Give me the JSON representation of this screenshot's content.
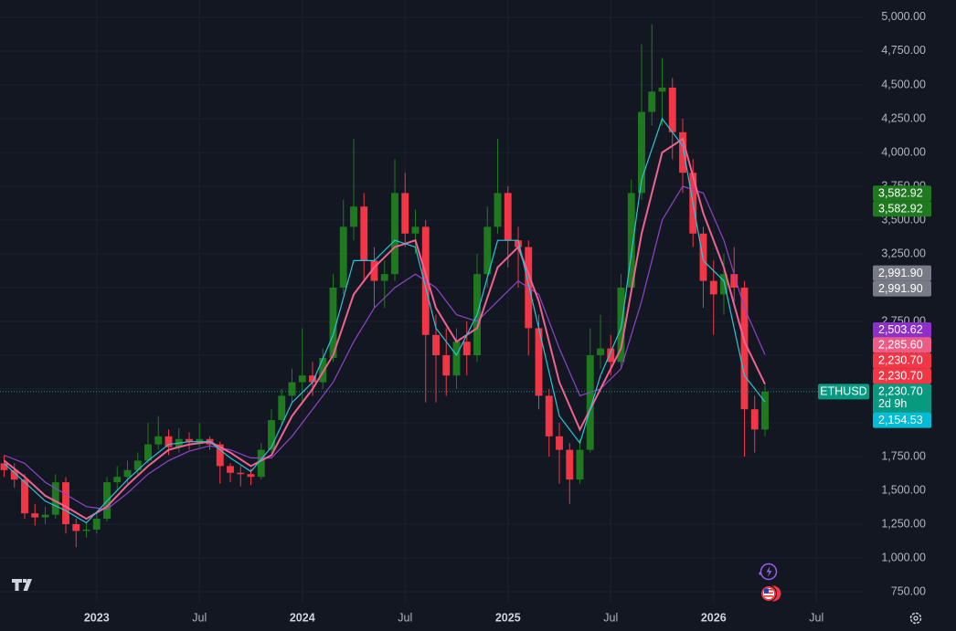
{
  "chart_data": {
    "type": "candlestick",
    "symbol": "ETHUSD",
    "x": [
      2022.55,
      2022.6,
      2022.65,
      2022.7,
      2022.75,
      2022.8,
      2022.85,
      2022.9,
      2022.95,
      2023.0,
      2023.05,
      2023.1,
      2023.15,
      2023.2,
      2023.25,
      2023.3,
      2023.35,
      2023.4,
      2023.45,
      2023.5,
      2023.55,
      2023.6,
      2023.65,
      2023.7,
      2023.75,
      2023.8,
      2023.85,
      2023.9,
      2023.95,
      2024.0,
      2024.05,
      2024.1,
      2024.15,
      2024.2,
      2024.25,
      2024.3,
      2024.35,
      2024.4,
      2024.45,
      2024.5,
      2024.55,
      2024.6,
      2024.65,
      2024.7,
      2024.75,
      2024.8,
      2024.85,
      2024.9,
      2024.95,
      2025.0,
      2025.05,
      2025.1,
      2025.15,
      2025.2,
      2025.25,
      2025.3,
      2025.35,
      2025.4,
      2025.45,
      2025.5,
      2025.55,
      2025.6,
      2025.65,
      2025.7,
      2025.75,
      2025.8,
      2025.85,
      2025.9,
      2025.95,
      2026.0,
      2026.05,
      2026.1,
      2026.15,
      2026.2,
      2026.25
    ],
    "open": [
      1700,
      1650,
      1580,
      1330,
      1300,
      1320,
      1560,
      1250,
      1200,
      1210,
      1290,
      1560,
      1600,
      1650,
      1720,
      1840,
      1900,
      1820,
      1880,
      1860,
      1880,
      1840,
      1680,
      1630,
      1620,
      1600,
      1800,
      2020,
      2200,
      2300,
      2350,
      2300,
      2480,
      3000,
      3450,
      3600,
      3200,
      3050,
      3100,
      3700,
      3400,
      3450,
      2650,
      2500,
      2350,
      2600,
      2500,
      3100,
      3450,
      3700,
      3350,
      3300,
      2700,
      2200,
      1900,
      1800,
      1580,
      1800,
      2500,
      2550,
      2450,
      3000,
      3700,
      4300,
      4450,
      4480,
      4150,
      3850,
      3400,
      3050,
      2950,
      3100,
      3000,
      2100,
      1950
    ],
    "high": [
      1760,
      1700,
      1620,
      1400,
      1380,
      1620,
      1600,
      1290,
      1260,
      1340,
      1600,
      1680,
      1720,
      1780,
      2000,
      2050,
      1950,
      1960,
      1930,
      2000,
      1900,
      1860,
      1700,
      1680,
      1660,
      1850,
      2100,
      2250,
      2400,
      2700,
      2450,
      2550,
      3100,
      3650,
      4100,
      3700,
      3300,
      3200,
      3950,
      3850,
      3580,
      3500,
      2800,
      2700,
      2700,
      2750,
      3250,
      3600,
      4100,
      3750,
      3450,
      3350,
      2800,
      2250,
      2000,
      1850,
      1880,
      2700,
      2800,
      2650,
      3100,
      3800,
      4800,
      4950,
      4700,
      4550,
      4250,
      3950,
      3450,
      3200,
      3250,
      3300,
      3050,
      2200,
      2280
    ],
    "low": [
      1600,
      1520,
      1290,
      1240,
      1250,
      1290,
      1180,
      1080,
      1150,
      1180,
      1270,
      1500,
      1550,
      1620,
      1700,
      1800,
      1760,
      1780,
      1800,
      1820,
      1800,
      1550,
      1560,
      1530,
      1540,
      1580,
      1780,
      1980,
      2150,
      2150,
      2200,
      2250,
      2450,
      2950,
      3350,
      3050,
      2850,
      2850,
      3050,
      3300,
      3250,
      2150,
      2150,
      2200,
      2250,
      2350,
      2450,
      3000,
      3400,
      3150,
      3000,
      2500,
      2100,
      1750,
      1550,
      1400,
      1550,
      1780,
      2400,
      2350,
      2400,
      2950,
      3650,
      4200,
      4200,
      3950,
      3700,
      3300,
      2850,
      2650,
      2800,
      2900,
      1750,
      1780,
      1900
    ],
    "close": [
      1650,
      1580,
      1330,
      1300,
      1320,
      1560,
      1250,
      1200,
      1210,
      1290,
      1560,
      1600,
      1650,
      1720,
      1840,
      1900,
      1820,
      1880,
      1860,
      1880,
      1840,
      1680,
      1630,
      1620,
      1600,
      1800,
      2020,
      2200,
      2300,
      2350,
      2300,
      2480,
      3000,
      3450,
      3600,
      3200,
      3050,
      3100,
      3700,
      3400,
      3450,
      2650,
      2500,
      2350,
      2600,
      2500,
      3100,
      3450,
      3700,
      3350,
      3300,
      2700,
      2200,
      1900,
      1800,
      1580,
      1800,
      2500,
      2550,
      2450,
      3000,
      3700,
      4300,
      4450,
      4480,
      4150,
      3850,
      3400,
      3050,
      2950,
      3100,
      3000,
      2100,
      1950,
      2230.7
    ],
    "up_color": "#1f7a1f",
    "down_color": "#f23645",
    "overlays": [
      {
        "color": "#8e44c9",
        "x": [
          2022.55,
          2022.65,
          2022.75,
          2022.85,
          2022.95,
          2023.05,
          2023.15,
          2023.25,
          2023.35,
          2023.45,
          2023.55,
          2023.65,
          2023.75,
          2023.85,
          2023.95,
          2024.05,
          2024.15,
          2024.25,
          2024.35,
          2024.45,
          2024.55,
          2024.65,
          2024.75,
          2024.85,
          2024.95,
          2025.05,
          2025.15,
          2025.25,
          2025.35,
          2025.45,
          2025.55,
          2025.65,
          2025.75,
          2025.85,
          2025.95,
          2026.05,
          2026.15,
          2026.25
        ],
        "values": [
          1760,
          1700,
          1560,
          1470,
          1380,
          1360,
          1480,
          1620,
          1720,
          1790,
          1830,
          1800,
          1740,
          1740,
          1900,
          2100,
          2300,
          2600,
          2850,
          3000,
          3100,
          3000,
          2800,
          2750,
          2900,
          3050,
          2950,
          2550,
          2200,
          2250,
          2400,
          2900,
          3500,
          3750,
          3700,
          3350,
          2850,
          2503.62
        ]
      },
      {
        "color": "#f06292",
        "x": [
          2022.55,
          2022.65,
          2022.75,
          2022.85,
          2022.95,
          2023.05,
          2023.15,
          2023.25,
          2023.35,
          2023.45,
          2023.55,
          2023.65,
          2023.75,
          2023.85,
          2023.95,
          2024.05,
          2024.15,
          2024.25,
          2024.35,
          2024.45,
          2024.55,
          2024.65,
          2024.75,
          2024.85,
          2024.95,
          2025.05,
          2025.15,
          2025.25,
          2025.35,
          2025.45,
          2025.55,
          2025.65,
          2025.75,
          2025.85,
          2025.95,
          2026.05,
          2026.15,
          2026.25
        ],
        "values": [
          1720,
          1600,
          1460,
          1380,
          1290,
          1380,
          1540,
          1680,
          1800,
          1840,
          1860,
          1780,
          1680,
          1760,
          2050,
          2250,
          2500,
          2950,
          3150,
          3300,
          3350,
          2850,
          2600,
          2700,
          3150,
          3300,
          2900,
          2300,
          1950,
          2250,
          2550,
          3400,
          4000,
          4100,
          3550,
          3150,
          2600,
          2285.6
        ]
      },
      {
        "color": "#26c6da",
        "x": [
          2022.55,
          2022.65,
          2022.75,
          2022.85,
          2022.95,
          2023.05,
          2023.15,
          2023.25,
          2023.35,
          2023.45,
          2023.55,
          2023.65,
          2023.75,
          2023.85,
          2023.95,
          2024.05,
          2024.15,
          2024.25,
          2024.35,
          2024.45,
          2024.55,
          2024.65,
          2024.75,
          2024.85,
          2024.95,
          2025.05,
          2025.15,
          2025.25,
          2025.35,
          2025.45,
          2025.55,
          2025.65,
          2025.75,
          2025.85,
          2025.95,
          2026.05,
          2026.15,
          2026.25
        ],
        "values": [
          1700,
          1560,
          1420,
          1350,
          1260,
          1420,
          1580,
          1720,
          1840,
          1860,
          1860,
          1740,
          1640,
          1820,
          2150,
          2300,
          2650,
          3200,
          3200,
          3350,
          3300,
          2700,
          2500,
          2800,
          3350,
          3350,
          2700,
          2050,
          1850,
          2350,
          2700,
          3800,
          4250,
          4050,
          3200,
          3050,
          2350,
          2154.53
        ]
      }
    ],
    "price_labels": [
      {
        "value": 3582.92,
        "label": "3,582.92",
        "color": "#1f7a1f"
      },
      {
        "value": 3582.92,
        "label": "3,582.92",
        "color": "#1f7a1f"
      },
      {
        "value": 2991.9,
        "label": "2,991.90",
        "color": "#787b86"
      },
      {
        "value": 2991.9,
        "label": "2,991.90",
        "color": "#787b86"
      },
      {
        "value": 2503.62,
        "label": "2,503.62",
        "color": "#8e2fc9"
      },
      {
        "value": 2285.6,
        "label": "2,285.60",
        "color": "#ec5c87"
      },
      {
        "value": 2230.7,
        "label": "2,230.70",
        "color": "#f23645"
      },
      {
        "value": 2230.7,
        "label": "2,230.70",
        "color": "#f23645"
      },
      {
        "value": 2230.7,
        "label": "2,230.70",
        "color": "#089981"
      },
      {
        "value": 2154.53,
        "label": "2,154.53",
        "color": "#00bcd4"
      }
    ],
    "countdown": "2d 9h",
    "xlim": [
      2022.53,
      2026.73
    ],
    "ylim": [
      669,
      5128
    ],
    "xticks": [
      2023,
      {
        "value": 2023.5,
        "label": "Jul"
      },
      2024,
      {
        "value": 2024.5,
        "label": "Jul"
      },
      2025,
      {
        "value": 2025.5,
        "label": "Jul"
      },
      2026,
      {
        "value": 2026.5,
        "label": "Jul"
      }
    ],
    "yticks": [
      {
        "value": 5000,
        "label": "5,000.00"
      },
      {
        "value": 4750,
        "label": "4,750.00"
      },
      {
        "value": 4500,
        "label": "4,500.00"
      },
      {
        "value": 4250,
        "label": "4,250.00"
      },
      {
        "value": 4000,
        "label": "4,000.00"
      },
      {
        "value": 3750,
        "label": "3,750.00"
      },
      {
        "value": 3500,
        "label": "3,500.00"
      },
      {
        "value": 3250,
        "label": "3,250.00"
      },
      {
        "value": 3000,
        "label": "3,000.00"
      },
      {
        "value": 2750,
        "label": "2,750.00"
      },
      {
        "value": 2500,
        "label": "2,500.00"
      },
      {
        "value": 2250,
        "label": "2,250.00"
      },
      {
        "value": 2000,
        "label": "2,000.00"
      },
      {
        "value": 1750,
        "label": "1,750.00"
      },
      {
        "value": 1500,
        "label": "1,500.00"
      },
      {
        "value": 1250,
        "label": "1,250.00"
      },
      {
        "value": 1000,
        "label": "1,000.00"
      },
      {
        "value": 750,
        "label": "750.00"
      }
    ],
    "grid": true
  }
}
